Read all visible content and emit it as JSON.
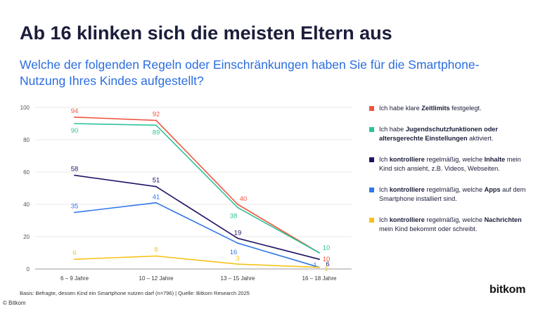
{
  "header": {
    "title": "Ab 16 klinken sich die meisten Eltern aus",
    "subtitle": "Welche der folgenden Regeln oder Einschränkungen haben Sie für die Smartphone-Nutzung Ihres Kindes aufgestellt?"
  },
  "chart_data": {
    "type": "line",
    "categories": [
      "6 – 9 Jahre",
      "10 – 12 Jahre",
      "13 – 15 Jahre",
      "16 – 18 Jahre"
    ],
    "ylim": [
      0,
      100
    ],
    "yticks": [
      0,
      20,
      40,
      60,
      80,
      100
    ],
    "grid": true,
    "legend_position": "right",
    "series": [
      {
        "values": [
          94,
          92,
          40,
          10
        ],
        "labels": [
          "94",
          "92",
          "40",
          "10"
        ],
        "color": "#f0553f",
        "legend": [
          {
            "text": "Ich habe klare ",
            "bold": false
          },
          {
            "text": "Zeitlimits",
            "bold": true
          },
          {
            "text": " festgelegt.",
            "bold": false
          }
        ]
      },
      {
        "values": [
          90,
          89,
          38,
          10
        ],
        "labels": [
          "90",
          "89",
          "38",
          "10"
        ],
        "color": "#2fc29a",
        "legend": [
          {
            "text": "Ich habe ",
            "bold": false
          },
          {
            "text": "Jugendschutzfunktionen oder altersgerechte Einstellungen",
            "bold": true
          },
          {
            "text": " aktiviert.",
            "bold": false
          }
        ]
      },
      {
        "values": [
          58,
          51,
          19,
          6
        ],
        "labels": [
          "58",
          "51",
          "19",
          "6"
        ],
        "color": "#1f1464",
        "legend": [
          {
            "text": "Ich ",
            "bold": false
          },
          {
            "text": "kontrolliere",
            "bold": true
          },
          {
            "text": " regelmäßig, welche ",
            "bold": false
          },
          {
            "text": "Inhalte",
            "bold": true
          },
          {
            "text": " mein Kind sich ansieht, z.B. Videos, Webseiten.",
            "bold": false
          }
        ]
      },
      {
        "values": [
          35,
          41,
          16,
          1
        ],
        "labels": [
          "35",
          "41",
          "16",
          "1"
        ],
        "color": "#3277e8",
        "legend": [
          {
            "text": "Ich ",
            "bold": false
          },
          {
            "text": "kontrolliere",
            "bold": true
          },
          {
            "text": " regelmäßig, welche ",
            "bold": false
          },
          {
            "text": "Apps",
            "bold": true
          },
          {
            "text": " auf dem Smartphone installiert sind.",
            "bold": false
          }
        ]
      },
      {
        "values": [
          6,
          8,
          3,
          1
        ],
        "labels": [
          "6",
          "8",
          "3",
          "1"
        ],
        "color": "#f6c21a",
        "legend": [
          {
            "text": "Ich ",
            "bold": false
          },
          {
            "text": "kontrolliere",
            "bold": true
          },
          {
            "text": " regelmäßig, welche ",
            "bold": false
          },
          {
            "text": "Nachrichten",
            "bold": true
          },
          {
            "text": " mein Kind bekommt oder schreibt.",
            "bold": false
          }
        ]
      }
    ]
  },
  "footer": {
    "source": "Basis: Befragte, dessen Kind ein Smartphone nutzen darf (n=796) | Quelle: Bitkom Research 2025",
    "credit": "© Bitkom",
    "logo": "bitkom"
  }
}
